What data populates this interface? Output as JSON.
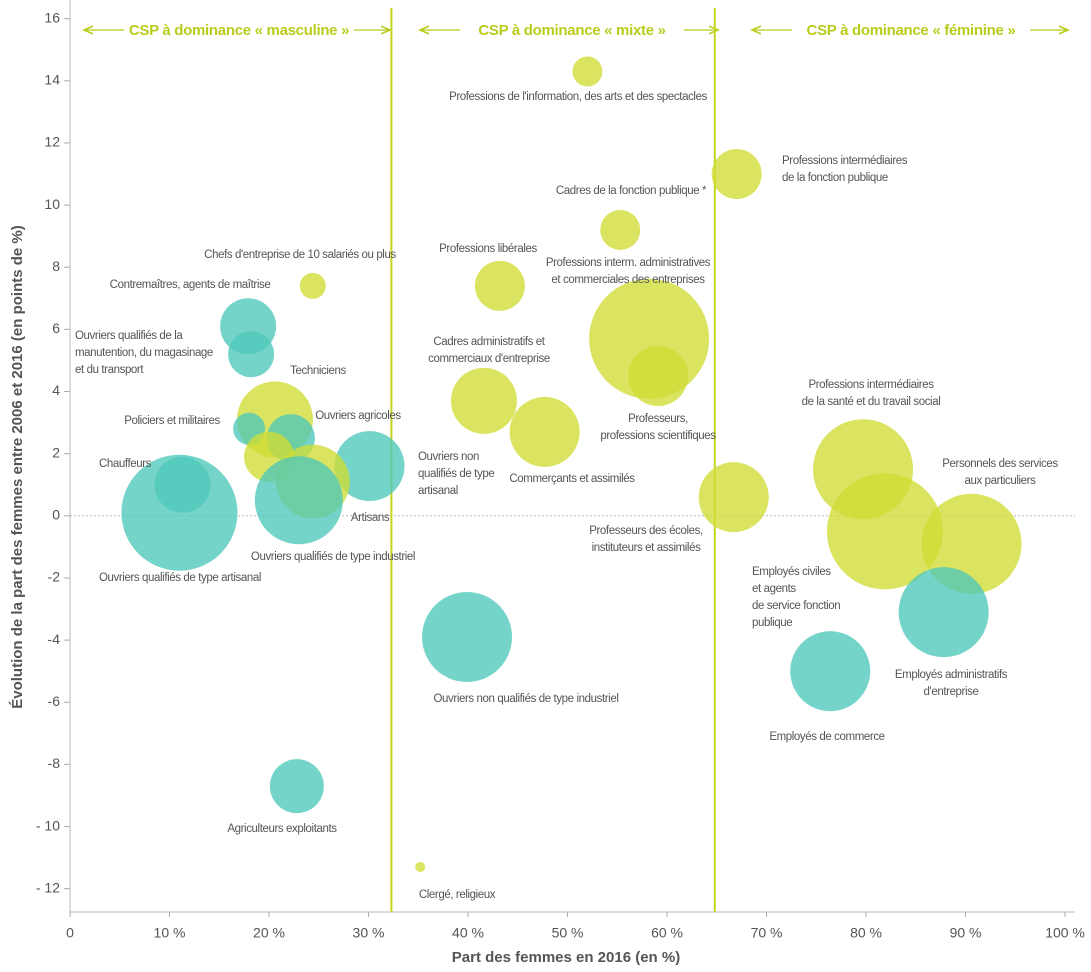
{
  "chart_data": {
    "type": "bubble",
    "x_label": "Part des femmes en 2016 (en %)",
    "y_label": "Évolution de la part des femmes entre 2006 et 2016 (en points de %)",
    "annotations": [
      "CSP à dominance « masculine »",
      "CSP à dominance « mixte »",
      "CSP à dominance « féminine »"
    ],
    "vlines": [
      32.3,
      64.8
    ],
    "xlim": [
      0,
      101
    ],
    "ylim": [
      -12.75,
      16.6
    ],
    "xticks": [
      0,
      {
        "value": 10,
        "label": "10 %"
      },
      {
        "value": 20,
        "label": "20 %"
      },
      {
        "value": 30,
        "label": "30 %"
      },
      {
        "value": 40,
        "label": "40 %"
      },
      {
        "value": 50,
        "label": "50 %"
      },
      {
        "value": 60,
        "label": "60 %"
      },
      {
        "value": 70,
        "label": "70 %"
      },
      {
        "value": 80,
        "label": "80 %"
      },
      {
        "value": 90,
        "label": "90 %"
      },
      {
        "value": 100,
        "label": "100 %"
      }
    ],
    "yticks": [
      {
        "value": -12,
        "label": "- 12"
      },
      {
        "value": -10,
        "label": "- 10"
      },
      -8,
      -6,
      -4,
      -2,
      0,
      2,
      4,
      6,
      8,
      10,
      12,
      14,
      16
    ],
    "zero_line": true,
    "points": [
      {
        "label": [
          "Professions de l'information, des arts et des spectacles"
        ],
        "x": 52,
        "y": 14.3,
        "size": 15,
        "color": "#cfdd35"
      },
      {
        "label": [
          "Professions intermédiaires",
          "de la fonction publique"
        ],
        "x": 67,
        "y": 11.0,
        "size": 25,
        "color": "#cfdd35"
      },
      {
        "label": [
          "Cadres de la fonction publique *"
        ],
        "x": 55.3,
        "y": 9.2,
        "size": 20,
        "color": "#cfdd35"
      },
      {
        "label": [
          "Professions libérales"
        ],
        "x": 43.2,
        "y": 7.4,
        "size": 25,
        "color": "#cfdd35"
      },
      {
        "label": [
          "Chefs d'entreprise de 10 salariés ou plus"
        ],
        "x": 24.4,
        "y": 7.4,
        "size": 13,
        "color": "#cfdd35"
      },
      {
        "label": [
          "Professions interm. administratives",
          "et commerciales des entreprises"
        ],
        "x": 58.2,
        "y": 5.7,
        "size": 60,
        "color": "#cfdd35"
      },
      {
        "label": [
          "Contremaîtres, agents de maîtrise"
        ],
        "x": 17.9,
        "y": 6.1,
        "size": 28,
        "color": "#4ec8ba"
      },
      {
        "label": [
          "Ouvriers qualifiés de la",
          "manutention, du magasinage",
          "et du transport"
        ],
        "x": 18.2,
        "y": 5.2,
        "size": 23,
        "color": "#4ec8ba"
      },
      {
        "label": [
          "Professeurs,",
          "professions scientifiques"
        ],
        "x": 59.1,
        "y": 4.5,
        "size": 30,
        "color": "#cfdd35"
      },
      {
        "label": [
          "Cadres administratifs et",
          "commerciaux d'entreprise"
        ],
        "x": 41.6,
        "y": 3.7,
        "size": 33,
        "color": "#cfdd35"
      },
      {
        "label": [
          "Techniciens"
        ],
        "x": 20.6,
        "y": 3.1,
        "size": 38,
        "color": "#cfdd35"
      },
      {
        "label": [
          "Policiers et militaires"
        ],
        "x": 18.0,
        "y": 2.8,
        "size": 16,
        "color": "#4ec8ba"
      },
      {
        "label": [
          "Ouvriers agricoles"
        ],
        "x": 22.2,
        "y": 2.5,
        "size": 24,
        "color": "#4ec8ba"
      },
      {
        "label": [
          "Commerçants et assimilés"
        ],
        "x": 47.7,
        "y": 2.7,
        "size": 35,
        "color": "#cfdd35"
      },
      {
        "label": [
          "Ouvriers non",
          "qualifiés de type",
          "artisanal"
        ],
        "x": 30.1,
        "y": 1.6,
        "size": 35,
        "color": "#4ec8ba"
      },
      {
        "label": [
          "Chauffeurs"
        ],
        "x": 11.3,
        "y": 1.0,
        "size": 28,
        "color": "#4ec8ba"
      },
      {
        "label": null,
        "x": 20.0,
        "y": 1.9,
        "size": 25,
        "color": "#cfdd35"
      },
      {
        "label": [
          "Artisans"
        ],
        "x": 24.4,
        "y": 1.1,
        "size": 37,
        "color": "#cfdd35"
      },
      {
        "label": [
          "Ouvriers qualifiés de type industriel"
        ],
        "x": 23.0,
        "y": 0.5,
        "size": 44,
        "color": "#4ec8ba"
      },
      {
        "label": [
          "Ouvriers qualifiés de type artisanal"
        ],
        "x": 11.0,
        "y": 0.1,
        "size": 58,
        "color": "#4ec8ba"
      },
      {
        "label": [
          "Professeurs des écoles,",
          "instituteurs et assimilés"
        ],
        "x": 66.7,
        "y": 0.6,
        "size": 35,
        "color": "#cfdd35"
      },
      {
        "label": [
          "Professions intermédiaires",
          "de la santé et du travail social"
        ],
        "x": 79.7,
        "y": 1.5,
        "size": 50,
        "color": "#cfdd35"
      },
      {
        "label": [
          "Employés civiles",
          "et agents",
          "de service fonction",
          "publique"
        ],
        "x": 81.9,
        "y": -0.5,
        "size": 58,
        "color": "#cfdd35"
      },
      {
        "label": [
          "Personnels des services",
          "aux particuliers"
        ],
        "x": 90.6,
        "y": -0.9,
        "size": 50,
        "color": "#cfdd35"
      },
      {
        "label": [
          "Employés administratifs",
          "d'entreprise"
        ],
        "x": 87.8,
        "y": -3.1,
        "size": 45,
        "color": "#4ec8ba"
      },
      {
        "label": [
          "Employés de commerce"
        ],
        "x": 76.4,
        "y": -5.0,
        "size": 40,
        "color": "#4ec8ba"
      },
      {
        "label": [
          "Ouvriers non qualifiés de type industriel"
        ],
        "x": 39.9,
        "y": -3.9,
        "size": 45,
        "color": "#4ec8ba"
      },
      {
        "label": [
          "Agriculteurs exploitants"
        ],
        "x": 22.8,
        "y": -8.7,
        "size": 27,
        "color": "#4ec8ba"
      },
      {
        "label": [
          "Clergé, religieux"
        ],
        "x": 35.2,
        "y": -11.3,
        "size": 5,
        "color": "#cfdd35"
      }
    ]
  }
}
